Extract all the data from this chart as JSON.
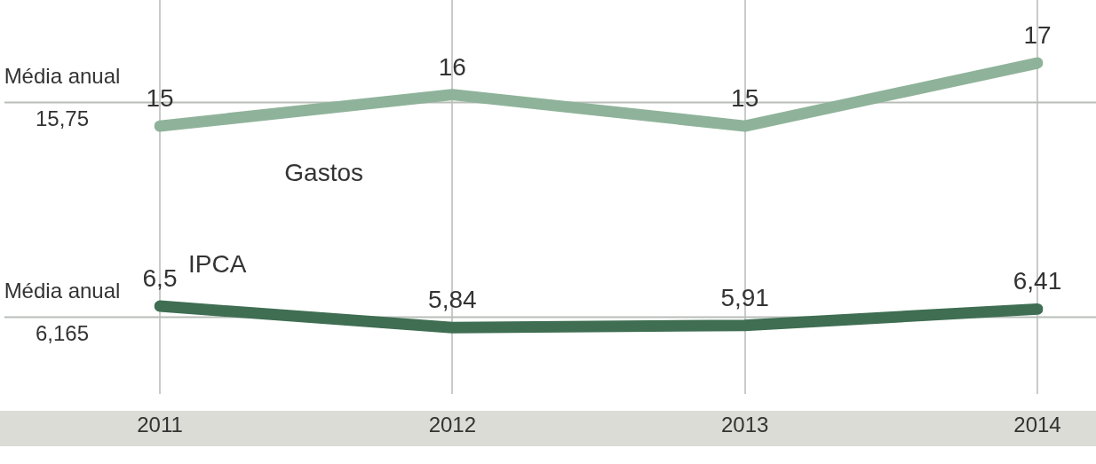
{
  "chart_data": {
    "type": "line",
    "categories": [
      "2011",
      "2012",
      "2013",
      "2014"
    ],
    "series": [
      {
        "name": "Gastos",
        "color": "#8fb39a",
        "values": [
          15,
          16,
          15,
          17
        ],
        "value_labels": [
          "15",
          "16",
          "15",
          "17"
        ],
        "axis": "y"
      },
      {
        "name": "IPCA",
        "color": "#3f6e52",
        "values": [
          6.5,
          5.84,
          5.91,
          6.41
        ],
        "value_labels": [
          "6,5",
          "5,84",
          "5,91",
          "6,41"
        ],
        "axis": "y2"
      }
    ],
    "ylim": [
      6.5,
      19
    ],
    "y2lim": [
      3.8,
      15.9
    ],
    "ref_lines": [
      {
        "axis": "y",
        "value": 15.75,
        "label": "Média anual\n15,75",
        "color": "#b8bdb8"
      },
      {
        "axis": "y2",
        "value": 6.165,
        "label": "Média anual\n6,165",
        "color": "#b8bdb8"
      }
    ],
    "grid": "x",
    "marker": "none",
    "line_style": "solid",
    "legend": false
  }
}
